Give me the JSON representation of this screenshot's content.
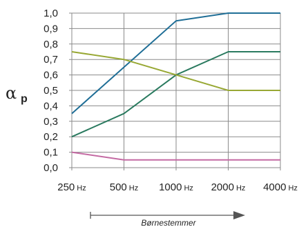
{
  "chart_data": {
    "type": "line",
    "title": "",
    "xlabel": "",
    "ylabel": "α",
    "ylabel_subscript": "p",
    "categories": [
      "250",
      "500",
      "1000",
      "2000",
      "4000"
    ],
    "unit": "Hz",
    "ylim": [
      0,
      1.0
    ],
    "yticks": [
      "0,0",
      "0,1",
      "0,2",
      "0,3",
      "0,4",
      "0,5",
      "0,6",
      "0,7",
      "0,8",
      "0,9",
      "1,0"
    ],
    "grid": true,
    "series": [
      {
        "color": "#1f6e96",
        "values": [
          0.35,
          0.65,
          0.95,
          1.0,
          1.0
        ]
      },
      {
        "color": "#2a7a5f",
        "values": [
          0.2,
          0.35,
          0.6,
          0.75,
          0.75
        ]
      },
      {
        "color": "#98a834",
        "values": [
          0.75,
          0.7,
          0.6,
          0.5,
          0.5
        ]
      },
      {
        "color": "#c46aa3",
        "values": [
          0.1,
          0.05,
          0.05,
          0.05,
          0.05
        ]
      }
    ],
    "annotation": "Børnestemmer"
  }
}
